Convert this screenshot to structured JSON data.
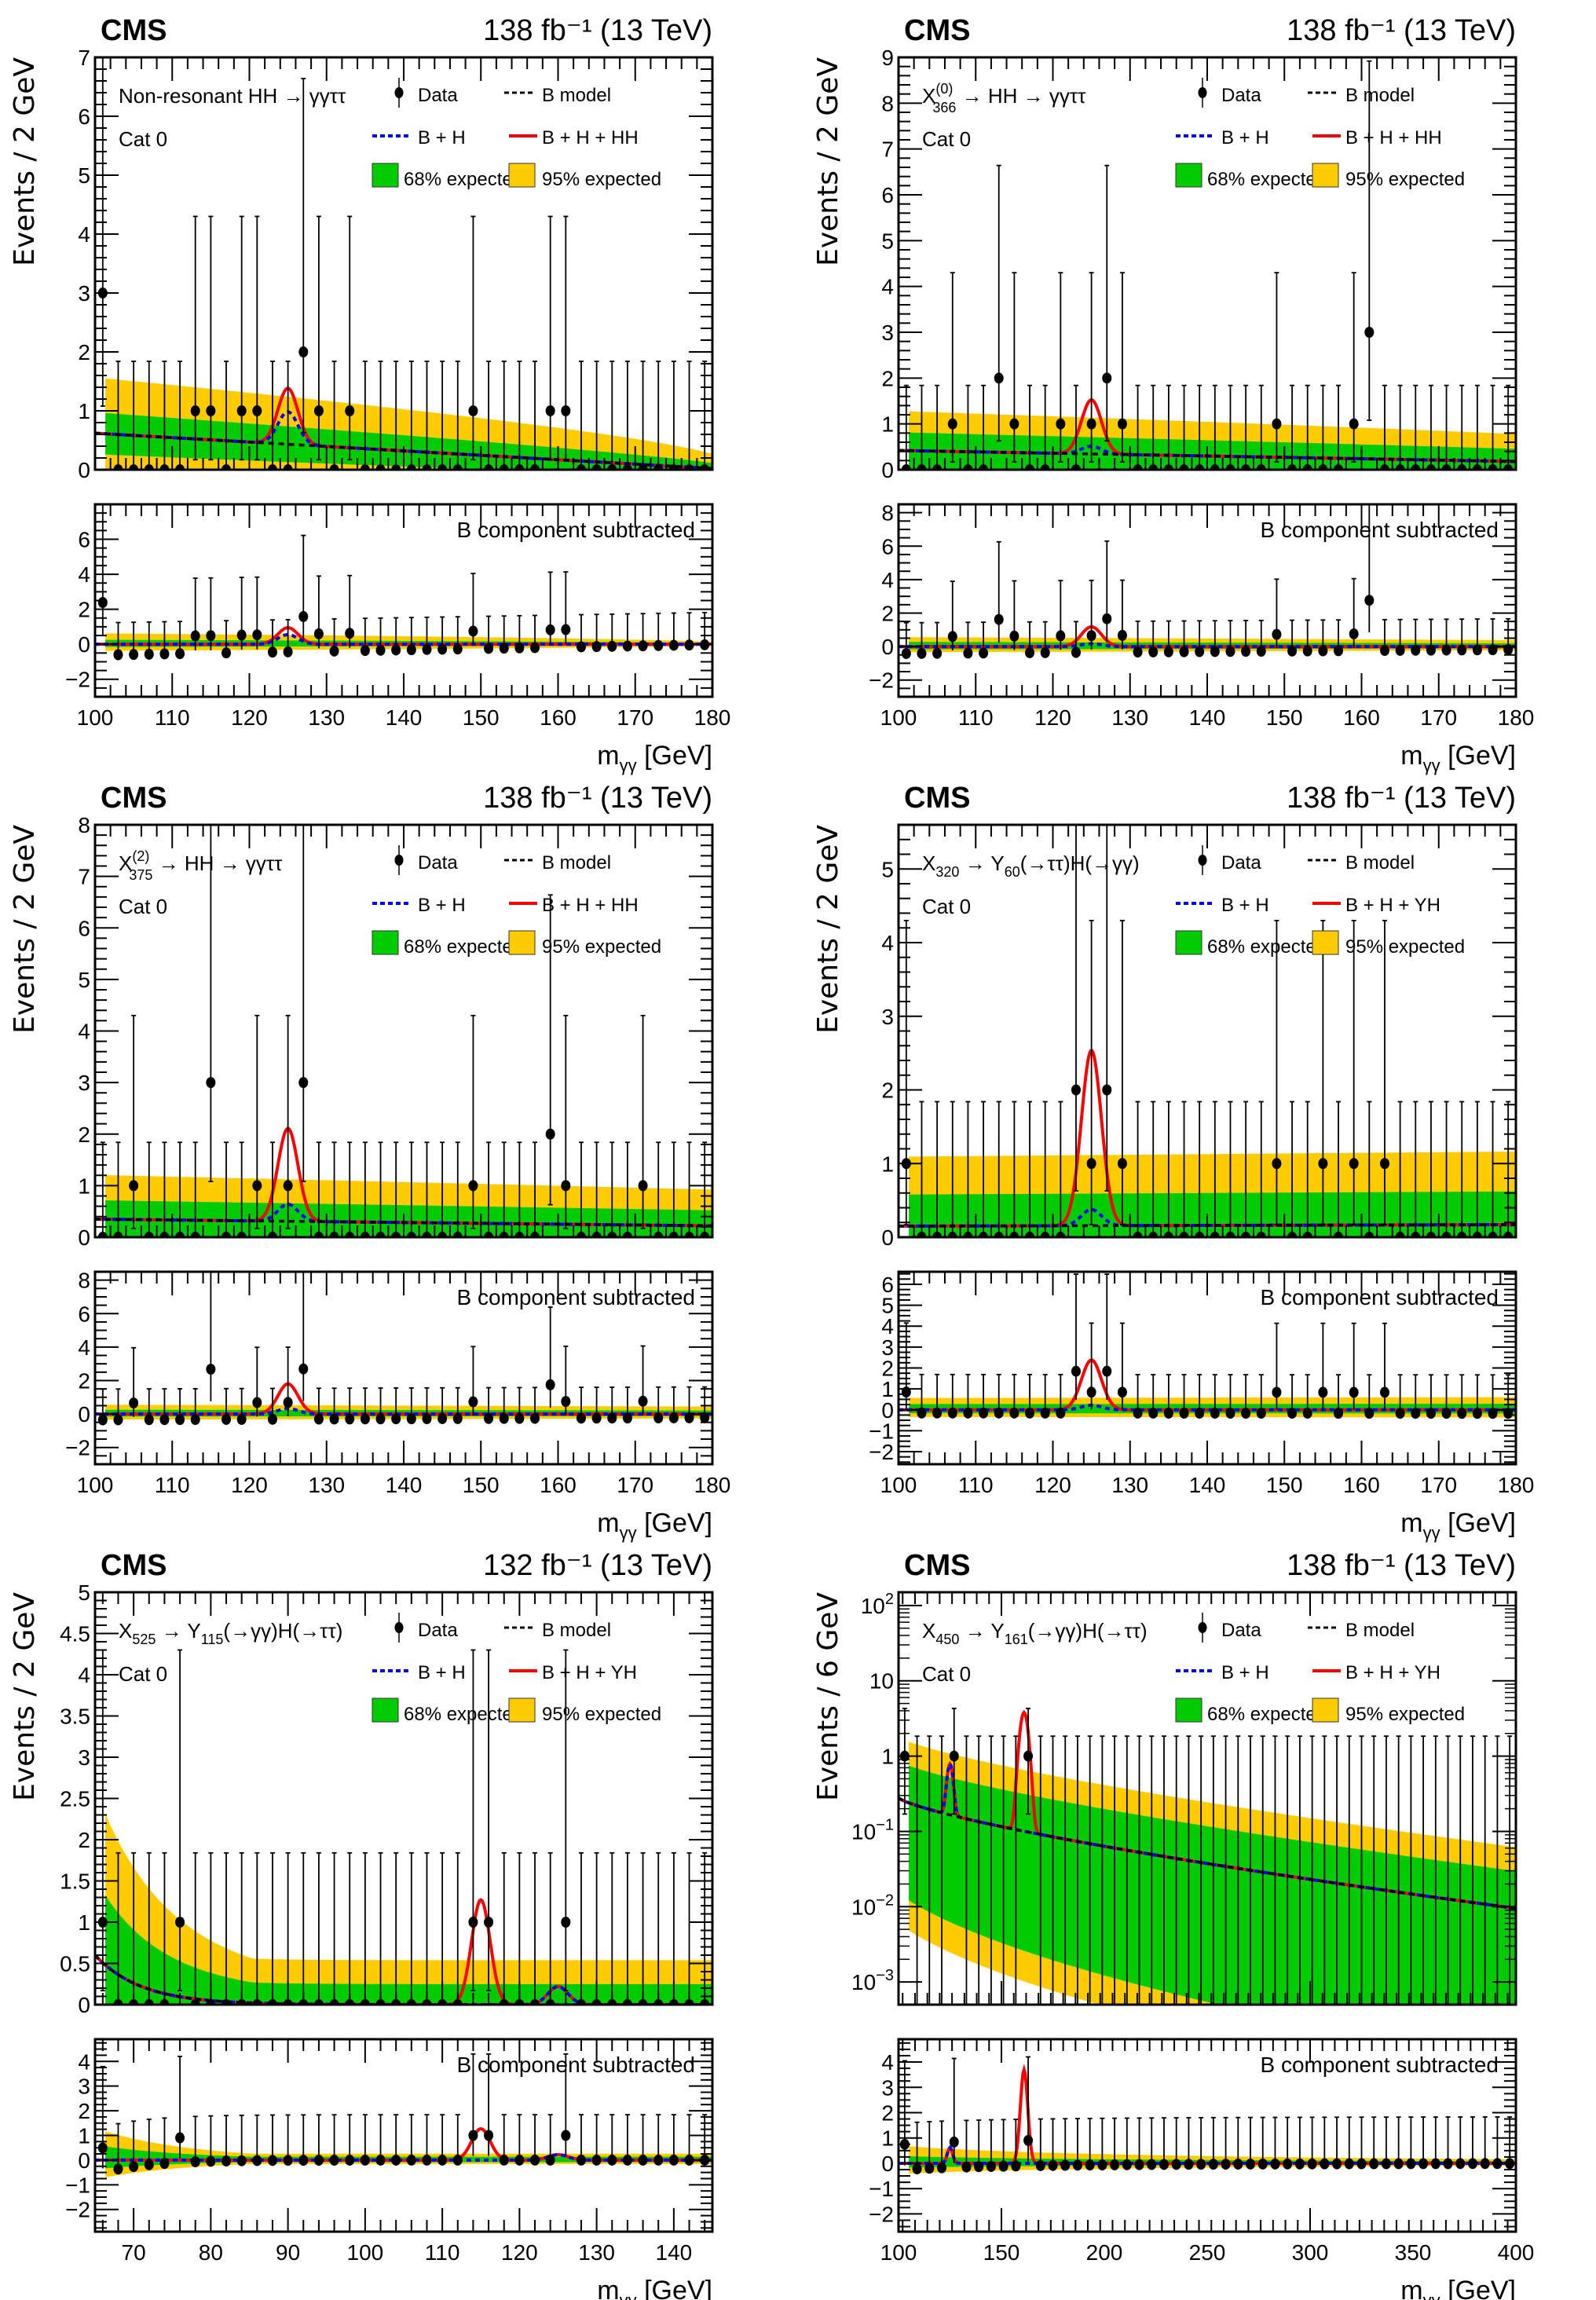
{
  "figure": {
    "x_axis_label": "m_γγ [GeV]",
    "lower_panel_label": "B component subtracted",
    "experiment": "CMS",
    "legend": {
      "data": "Data",
      "bmodel": "B model",
      "bh": "B + H",
      "expected68": "68% expected",
      "expected95": "95% expected"
    },
    "colors": {
      "green_band": "#00cc00",
      "yellow_band": "#ffcc00",
      "bh_line": "#0000ff",
      "signal_line": "#ff0000",
      "bmodel_line": "#000000"
    }
  },
  "chart_data": [
    {
      "type": "scatter",
      "title": "Non-resonant HH → γγττ",
      "category": "Cat 0",
      "lumi": "138 fb⁻¹ (13 TeV)",
      "ylabel": "Events / 2 GeV",
      "signal_label": "B + H + HH",
      "xlim": [
        100,
        180
      ],
      "ylim": [
        0,
        7
      ],
      "yscale": "linear",
      "xticks": [
        100,
        110,
        120,
        130,
        140,
        150,
        160,
        170,
        180
      ],
      "yticks": [
        0,
        1,
        2,
        3,
        4,
        5,
        6,
        7
      ],
      "lower_ylim": [
        -3,
        8
      ],
      "lower_yticks": [
        -2,
        0,
        2,
        4,
        6
      ],
      "bin_width": 2,
      "x": [
        101,
        103,
        105,
        107,
        109,
        111,
        113,
        115,
        117,
        119,
        121,
        123,
        125,
        127,
        129,
        131,
        133,
        135,
        137,
        139,
        141,
        143,
        145,
        147,
        149,
        151,
        153,
        155,
        157,
        159,
        161,
        163,
        165,
        167,
        169,
        171,
        173,
        175,
        177,
        179
      ],
      "data": [
        3,
        0,
        0,
        0,
        0,
        0,
        1,
        1,
        0,
        1,
        1,
        0,
        0,
        2,
        1,
        0,
        1,
        0,
        0,
        0,
        0,
        0,
        0,
        0,
        1,
        0,
        0,
        0,
        0,
        1,
        1,
        0,
        0,
        0,
        0,
        0,
        0,
        0,
        0,
        0
      ],
      "bmodel": {
        "start": 0.62,
        "end": 0.02,
        "shape": "linear"
      },
      "bh_peak": {
        "mass": 125,
        "height": 0.55,
        "sigma": 1.3
      },
      "signal_peak": {
        "mass": 125,
        "height": 0.95,
        "sigma": 1.3
      },
      "band68_frac": 0.45,
      "band95_frac": 1.2
    },
    {
      "type": "scatter",
      "title": "X(0)366 → HH → γγττ",
      "title_parts": {
        "sym": "X",
        "sup": "(0)",
        "sub": "366",
        "rest": " → HH → γγττ"
      },
      "category": "Cat 0",
      "lumi": "138 fb⁻¹ (13 TeV)",
      "ylabel": "Events / 2 GeV",
      "signal_label": "B + H + HH",
      "xlim": [
        100,
        180
      ],
      "ylim": [
        0,
        9
      ],
      "yscale": "linear",
      "xticks": [
        100,
        110,
        120,
        130,
        140,
        150,
        160,
        170,
        180
      ],
      "yticks": [
        0,
        1,
        2,
        3,
        4,
        5,
        6,
        7,
        8,
        9
      ],
      "lower_ylim": [
        -3,
        8.5
      ],
      "lower_yticks": [
        -2,
        0,
        2,
        4,
        6,
        8
      ],
      "bin_width": 2,
      "x": [
        101,
        103,
        105,
        107,
        109,
        111,
        113,
        115,
        117,
        119,
        121,
        123,
        125,
        127,
        129,
        131,
        133,
        135,
        137,
        139,
        141,
        143,
        145,
        147,
        149,
        151,
        153,
        155,
        157,
        159,
        161,
        163,
        165,
        167,
        169,
        171,
        173,
        175,
        177,
        179
      ],
      "data": [
        0,
        0,
        0,
        1,
        0,
        0,
        2,
        1,
        0,
        0,
        1,
        0,
        1,
        2,
        1,
        0,
        0,
        0,
        0,
        0,
        0,
        0,
        0,
        0,
        1,
        0,
        0,
        0,
        0,
        1,
        3,
        0,
        0,
        0,
        0,
        0,
        0,
        0,
        0,
        0
      ],
      "bmodel": {
        "start": 0.42,
        "end": 0.18,
        "shape": "linear"
      },
      "bh_peak": {
        "mass": 125,
        "height": 0.17,
        "sigma": 1.3
      },
      "signal_peak": {
        "mass": 125,
        "height": 1.18,
        "sigma": 1.3
      },
      "band68_frac": 0.6,
      "band95_frac": 1.3
    },
    {
      "type": "scatter",
      "title": "X(2)375 → HH → γγττ",
      "title_parts": {
        "sym": "X",
        "sup": "(2)",
        "sub": "375",
        "rest": " → HH → γγττ"
      },
      "category": "Cat 0",
      "lumi": "138 fb⁻¹ (13 TeV)",
      "ylabel": "Events / 2 GeV",
      "signal_label": "B + H + HH",
      "xlim": [
        100,
        180
      ],
      "ylim": [
        0,
        8
      ],
      "yscale": "linear",
      "xticks": [
        100,
        110,
        120,
        130,
        140,
        150,
        160,
        170,
        180
      ],
      "yticks": [
        0,
        1,
        2,
        3,
        4,
        5,
        6,
        7,
        8
      ],
      "lower_ylim": [
        -3,
        8.5
      ],
      "lower_yticks": [
        -2,
        0,
        2,
        4,
        6,
        8
      ],
      "bin_width": 2,
      "x": [
        101,
        103,
        105,
        107,
        109,
        111,
        113,
        115,
        117,
        119,
        121,
        123,
        125,
        127,
        129,
        131,
        133,
        135,
        137,
        139,
        141,
        143,
        145,
        147,
        149,
        151,
        153,
        155,
        157,
        159,
        161,
        163,
        165,
        167,
        169,
        171,
        173,
        175,
        177,
        179
      ],
      "data": [
        0,
        0,
        1,
        0,
        0,
        0,
        0,
        3,
        0,
        0,
        1,
        0,
        1,
        3,
        0,
        0,
        0,
        0,
        0,
        0,
        0,
        0,
        0,
        0,
        1,
        0,
        0,
        0,
        0,
        2,
        1,
        0,
        0,
        0,
        0,
        1,
        0,
        0,
        0,
        0
      ],
      "bmodel": {
        "start": 0.35,
        "end": 0.22,
        "shape": "linear"
      },
      "bh_peak": {
        "mass": 125,
        "height": 0.33,
        "sigma": 1.3
      },
      "signal_peak": {
        "mass": 125,
        "height": 1.8,
        "sigma": 1.3
      },
      "band68_frac": 0.6,
      "band95_frac": 1.4
    },
    {
      "type": "scatter",
      "title": "X320 → Y60(→ττ)H(→γγ)",
      "title_parts": {
        "sym": "X",
        "sub": "320",
        "mid": " → Y",
        "sub2": "60",
        "rest": "(→ττ)H(→γγ)"
      },
      "category": "Cat 0",
      "lumi": "138 fb⁻¹ (13 TeV)",
      "ylabel": "Events / 2 GeV",
      "signal_label": "B + H + YH",
      "xlim": [
        100,
        180
      ],
      "ylim": [
        0,
        5.6
      ],
      "yscale": "linear",
      "xticks": [
        100,
        110,
        120,
        130,
        140,
        150,
        160,
        170,
        180
      ],
      "yticks": [
        0,
        1,
        2,
        3,
        4,
        5
      ],
      "lower_ylim": [
        -2.6,
        6.6
      ],
      "lower_yticks": [
        -2,
        -1,
        0,
        1,
        2,
        3,
        4,
        5,
        6
      ],
      "bin_width": 2,
      "x": [
        101,
        103,
        105,
        107,
        109,
        111,
        113,
        115,
        117,
        119,
        121,
        123,
        125,
        127,
        129,
        131,
        133,
        135,
        137,
        139,
        141,
        143,
        145,
        147,
        149,
        151,
        153,
        155,
        157,
        159,
        161,
        163,
        165,
        167,
        169,
        171,
        173,
        175,
        177,
        179
      ],
      "data": [
        1,
        0,
        0,
        0,
        0,
        0,
        0,
        0,
        0,
        0,
        0,
        2,
        1,
        2,
        1,
        0,
        0,
        0,
        0,
        0,
        0,
        0,
        0,
        0,
        1,
        0,
        0,
        1,
        0,
        1,
        0,
        1,
        0,
        0,
        0,
        0,
        0,
        0,
        0,
        0
      ],
      "bmodel": {
        "start": 0.15,
        "end": 0.17,
        "shape": "linear"
      },
      "bh_peak": {
        "mass": 125,
        "height": 0.22,
        "sigma": 1.3
      },
      "signal_peak": {
        "mass": 125,
        "height": 2.38,
        "sigma": 1.3
      },
      "band68_frac": 1.0,
      "band95_frac": 2.2
    },
    {
      "type": "scatter",
      "title": "X525 → Y115(→γγ)H(→ττ)",
      "title_parts": {
        "sym": "X",
        "sub": "525",
        "mid": " → Y",
        "sub2": "115",
        "rest": "(→γγ)H(→ττ)"
      },
      "category": "Cat 0",
      "lumi": "132 fb⁻¹ (13 TeV)",
      "ylabel": "Events / 2 GeV",
      "signal_label": "B + H + YH",
      "xlim": [
        65,
        145
      ],
      "ylim": [
        0,
        5
      ],
      "yscale": "linear",
      "xticks": [
        70,
        80,
        90,
        100,
        110,
        120,
        130,
        140
      ],
      "yticks": [
        0,
        0.5,
        1,
        1.5,
        2,
        2.5,
        3,
        3.5,
        4,
        4.5,
        5
      ],
      "lower_ylim": [
        -2.9,
        4.9
      ],
      "lower_yticks": [
        -2,
        -1,
        0,
        1,
        2,
        3,
        4
      ],
      "bin_width": 2,
      "x": [
        66,
        68,
        70,
        72,
        74,
        76,
        78,
        80,
        82,
        84,
        86,
        88,
        90,
        92,
        94,
        96,
        98,
        100,
        102,
        104,
        106,
        108,
        110,
        112,
        114,
        116,
        118,
        120,
        122,
        124,
        126,
        128,
        130,
        132,
        134,
        136,
        138,
        140,
        142,
        144
      ],
      "data": [
        1,
        0,
        0,
        0,
        0,
        1,
        0,
        0,
        0,
        0,
        0,
        0,
        0,
        0,
        0,
        0,
        0,
        0,
        0,
        0,
        0,
        0,
        0,
        0,
        1,
        1,
        0,
        0,
        0,
        0,
        1,
        0,
        0,
        0,
        0,
        0,
        0,
        0,
        0,
        0
      ],
      "bmodel": {
        "start": 0.6,
        "end": 0.0,
        "shape": "exp",
        "decay": 6
      },
      "bh_peak": {
        "mass": 125,
        "height": 0.22,
        "sigma": 1.3
      },
      "signal_peak": {
        "mass": 115,
        "height": 1.27,
        "sigma": 1.2
      },
      "band68_frac": 1.2,
      "band95_frac": 2.6
    },
    {
      "type": "scatter",
      "title": "X450 → Y161(→γγ)H(→ττ)",
      "title_parts": {
        "sym": "X",
        "sub": "450",
        "mid": " → Y",
        "sub2": "161",
        "rest": "(→γγ)H(→ττ)"
      },
      "category": "Cat 0",
      "lumi": "138 fb⁻¹ (13 TeV)",
      "ylabel": "Events / 6 GeV",
      "signal_label": "B + H + YH",
      "xlim": [
        100,
        400
      ],
      "ylim": [
        0.0005,
        150
      ],
      "yscale": "log",
      "xticks": [
        100,
        150,
        200,
        250,
        300,
        350,
        400
      ],
      "yticks_log": [
        "10^-3",
        "10^-2",
        "10^-1",
        "1",
        "10",
        "10^2"
      ],
      "lower_ylim": [
        -2.7,
        4.9
      ],
      "lower_yticks": [
        -2,
        -1,
        0,
        1,
        2,
        3,
        4
      ],
      "bin_width": 6,
      "x": [
        103,
        109,
        115,
        121,
        127,
        133,
        139,
        145,
        151,
        157,
        163,
        169,
        175,
        181,
        187,
        193,
        199,
        205,
        211,
        217,
        223,
        229,
        235,
        241,
        247,
        253,
        259,
        265,
        271,
        277,
        283,
        289,
        295,
        301,
        307,
        313,
        319,
        325,
        331,
        337,
        343,
        349,
        355,
        361,
        367,
        373,
        379,
        385,
        391,
        397
      ],
      "data": [
        1,
        0,
        0,
        0,
        1,
        0,
        0,
        0,
        0,
        0,
        1,
        0,
        0,
        0,
        0,
        0,
        0,
        0,
        0,
        0,
        0,
        0,
        0,
        0,
        0,
        0,
        0,
        0,
        0,
        0,
        0,
        0,
        0,
        0,
        0,
        0,
        0,
        0,
        0,
        0,
        0,
        0,
        0,
        0,
        0,
        0,
        0,
        0,
        0,
        0
      ],
      "bmodel": {
        "start": 0.28,
        "end": 0.0095,
        "shape": "logexp"
      },
      "bh_peak": {
        "mass": 125,
        "height": 0.62,
        "sigma": 1.3
      },
      "signal_peak": {
        "mass": 161,
        "height": 3.7,
        "sigma": 1.8
      },
      "band68_frac": 0.85,
      "band95_frac": 2.2
    }
  ]
}
